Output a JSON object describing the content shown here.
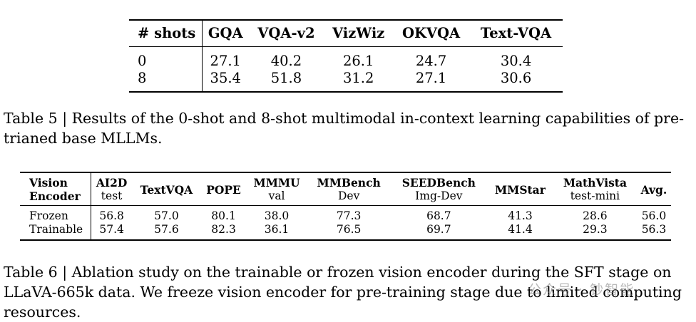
{
  "table5": {
    "columns": [
      "# shots",
      "GQA",
      "VQA-v2",
      "VizWiz",
      "OKVQA",
      "Text-VQA"
    ],
    "rows": [
      [
        "0",
        "27.1",
        "40.2",
        "26.1",
        "24.7",
        "30.4"
      ],
      [
        "8",
        "35.4",
        "51.8",
        "31.2",
        "27.1",
        "30.6"
      ]
    ],
    "caption": "Table 5 | Results of the 0-shot and 8-shot multimodal in-context learning capabilities of pre-trianed base MLLMs."
  },
  "table6": {
    "columns": [
      {
        "main": "Vision",
        "sub": "Encoder"
      },
      {
        "main": "AI2D",
        "sub": "test"
      },
      {
        "main": "TextVQA",
        "sub": ""
      },
      {
        "main": "POPE",
        "sub": ""
      },
      {
        "main": "MMMU",
        "sub": "val"
      },
      {
        "main": "MMBench",
        "sub": "Dev"
      },
      {
        "main": "SEEDBench",
        "sub": "Img-Dev"
      },
      {
        "main": "MMStar",
        "sub": ""
      },
      {
        "main": "MathVista",
        "sub": "test-mini"
      },
      {
        "main": "Avg.",
        "sub": ""
      }
    ],
    "rows": [
      [
        "Frozen",
        "56.8",
        "57.0",
        "80.1",
        "38.0",
        "77.3",
        "68.7",
        "41.3",
        "28.6",
        "56.0"
      ],
      [
        "Trainable",
        "57.4",
        "57.6",
        "82.3",
        "36.1",
        "76.5",
        "69.7",
        "41.4",
        "29.3",
        "56.3"
      ]
    ],
    "caption": "Table 6 | Ablation study on the trainable or frozen vision encoder during the SFT stage on LLaVA-665k data. We freeze vision encoder for pre-training stage due to limited computing resources."
  },
  "watermark": "公众号 · 钞智能"
}
